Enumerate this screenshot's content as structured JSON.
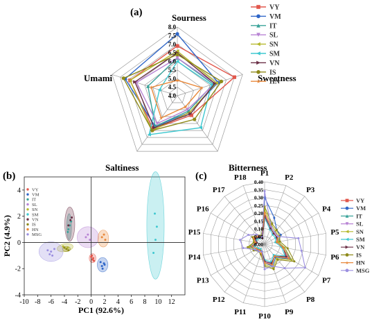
{
  "colors": {
    "VY": "#e2574c",
    "VM": "#2f66c8",
    "IT": "#3aa39a",
    "SL": "#b883d4",
    "SN": "#b4b82c",
    "SM": "#3fc8d0",
    "VN": "#6a2f46",
    "IS": "#8f8a1a",
    "HN": "#e8883a",
    "MSG": "#9b8fe0"
  },
  "chart_data": [
    {
      "type": "radar",
      "panel_label": "(a)",
      "axes": [
        "Sourness",
        "Sweetness",
        "Bitterness",
        "Saltiness",
        "Umami"
      ],
      "rlim": [
        4.0,
        8.0
      ],
      "ticks": [
        "4.0",
        "4.5",
        "5.0",
        "5.5",
        "6.0",
        "6.5",
        "7.0",
        "7.5",
        "8.0"
      ],
      "legend": "top-right",
      "series": [
        {
          "name": "VY",
          "values": [
            6.9,
            7.5,
            5.4,
            6.4,
            6.9
          ]
        },
        {
          "name": "VM",
          "values": [
            7.6,
            6.5,
            5.2,
            6.2,
            7.2
          ]
        },
        {
          "name": "IT",
          "values": [
            6.2,
            6.2,
            5.1,
            6.2,
            5.8
          ]
        },
        {
          "name": "SL",
          "values": [
            6.2,
            6.3,
            5.0,
            6.0,
            6.5
          ]
        },
        {
          "name": "SN",
          "values": [
            6.6,
            6.4,
            5.2,
            6.5,
            6.9
          ]
        },
        {
          "name": "SM",
          "values": [
            6.0,
            6.1,
            6.3,
            6.8,
            5.1
          ]
        },
        {
          "name": "VN",
          "values": [
            6.5,
            6.3,
            5.3,
            6.3,
            6.6
          ]
        },
        {
          "name": "IS",
          "values": [
            6.4,
            6.7,
            5.7,
            6.5,
            7.3
          ]
        },
        {
          "name": "HN",
          "values": [
            4.9,
            5.5,
            4.8,
            5.6,
            5.6
          ]
        }
      ]
    },
    {
      "type": "scatter",
      "panel_label": "(b)",
      "xlabel": "PC1 (92.6%)",
      "ylabel": "PC2 (4.9%)",
      "xlim": [
        -10,
        14
      ],
      "ylim": [
        -4,
        5
      ],
      "xticks": [
        "-10",
        "-8",
        "-6",
        "-4",
        "-2",
        "0",
        "2",
        "4",
        "6",
        "8",
        "10",
        "12"
      ],
      "yticks": [
        "-4",
        "-2",
        "0",
        "2",
        "4"
      ],
      "legend": "top-left",
      "series": [
        {
          "name": "VY",
          "x": [
            0.0,
            0.2,
            0.3,
            0.1,
            0.4
          ],
          "y": [
            -1.1,
            -1.3,
            -1.2,
            -1.0,
            -1.4
          ],
          "ellipse": {
            "cx": 0.2,
            "cy": -1.2,
            "rx": 0.5,
            "ry": 0.35,
            "angle": 0
          }
        },
        {
          "name": "VM",
          "x": [
            1.4,
            1.6,
            1.9,
            1.7,
            2.0
          ],
          "y": [
            -1.5,
            -1.8,
            -1.6,
            -2.0,
            -1.7
          ],
          "ellipse": {
            "cx": 1.7,
            "cy": -1.7,
            "rx": 0.8,
            "ry": 0.55,
            "angle": 0
          }
        },
        {
          "name": "IT",
          "x": [
            -3.4,
            -3.2,
            -3.0,
            -3.5
          ],
          "y": [
            1.0,
            1.3,
            1.6,
            0.8
          ],
          "ellipse": {
            "cx": -3.3,
            "cy": 1.2,
            "rx": 0.35,
            "ry": 1.0,
            "angle": 0
          }
        },
        {
          "name": "SL",
          "x": [
            -0.8,
            -0.5,
            -0.2
          ],
          "y": [
            0.4,
            0.6,
            0.2
          ],
          "ellipse": {
            "cx": -0.5,
            "cy": 0.4,
            "rx": 1.6,
            "ry": 0.8,
            "angle": 0
          }
        },
        {
          "name": "SN",
          "x": [
            -4.2,
            -4.0,
            -3.7,
            -3.5
          ],
          "y": [
            -0.3,
            -0.4,
            -0.5,
            -0.4
          ],
          "ellipse": {
            "cx": -3.9,
            "cy": -0.4,
            "rx": 1.2,
            "ry": 0.3,
            "angle": -10
          }
        },
        {
          "name": "SM",
          "x": [
            9.3,
            9.6,
            9.8,
            9.5
          ],
          "y": [
            -0.8,
            0.2,
            1.2,
            2.2
          ],
          "ellipse": {
            "cx": 9.6,
            "cy": 1.3,
            "rx": 1.3,
            "ry": 4.1,
            "angle": 0
          }
        },
        {
          "name": "VN",
          "x": [
            -3.4,
            -3.1,
            -2.9
          ],
          "y": [
            1.3,
            1.7,
            1.9
          ],
          "ellipse": {
            "cx": -3.2,
            "cy": 1.4,
            "rx": 0.75,
            "ry": 1.3,
            "angle": 0
          }
        },
        {
          "name": "IS",
          "x": [
            -4.0,
            -3.7,
            -3.4
          ],
          "y": [
            -0.4,
            -0.5,
            -0.6
          ],
          "ellipse": {
            "cx": -3.7,
            "cy": -0.5,
            "rx": 0.6,
            "ry": 0.2,
            "angle": 0
          }
        },
        {
          "name": "HN",
          "x": [
            1.6,
            1.9,
            2.1
          ],
          "y": [
            0.4,
            0.6,
            0.2
          ],
          "ellipse": {
            "cx": 1.8,
            "cy": 0.3,
            "rx": 0.8,
            "ry": 0.65,
            "angle": 0
          }
        },
        {
          "name": "MSG",
          "x": [
            -6.5,
            -6.0,
            -5.5,
            -5.8,
            -6.2
          ],
          "y": [
            -0.6,
            -0.7,
            -0.5,
            -1.0,
            -0.9
          ],
          "ellipse": {
            "cx": -6.0,
            "cy": -0.7,
            "rx": 1.8,
            "ry": 0.75,
            "angle": 0
          }
        }
      ]
    },
    {
      "type": "radar",
      "panel_label": "(c)",
      "axes": [
        "P1",
        "P2",
        "P3",
        "P4",
        "P5",
        "P6",
        "P7",
        "P8",
        "P9",
        "P10",
        "P11",
        "P12",
        "P13",
        "P14",
        "P15",
        "P16",
        "P17",
        "P18"
      ],
      "rlim": [
        0,
        0.4
      ],
      "ticks": [
        "0.00",
        "0.05",
        "0.10",
        "0.15",
        "0.20",
        "0.25",
        "0.30",
        "0.35",
        "0.40"
      ],
      "legend": "right",
      "series": [
        {
          "name": "VY",
          "values": [
            0.2,
            0.12,
            0.1,
            0.1,
            0.08,
            0.12,
            0.18,
            0.1,
            0.14,
            0.12,
            0.06,
            0.05,
            0.06,
            0.08,
            0.06,
            0.08,
            0.07,
            0.05
          ]
        },
        {
          "name": "VM",
          "values": [
            0.3,
            0.18,
            0.12,
            0.12,
            0.09,
            0.13,
            0.19,
            0.11,
            0.15,
            0.12,
            0.06,
            0.05,
            0.07,
            0.09,
            0.06,
            0.07,
            0.06,
            0.04
          ]
        },
        {
          "name": "IT",
          "values": [
            0.18,
            0.11,
            0.09,
            0.09,
            0.08,
            0.12,
            0.16,
            0.1,
            0.13,
            0.11,
            0.05,
            0.04,
            0.06,
            0.08,
            0.05,
            0.07,
            0.06,
            0.04
          ]
        },
        {
          "name": "SL",
          "values": [
            0.19,
            0.12,
            0.1,
            0.09,
            0.08,
            0.12,
            0.17,
            0.1,
            0.14,
            0.11,
            0.05,
            0.05,
            0.06,
            0.08,
            0.06,
            0.07,
            0.06,
            0.05
          ]
        },
        {
          "name": "SN",
          "values": [
            0.22,
            0.13,
            0.11,
            0.1,
            0.09,
            0.13,
            0.2,
            0.12,
            0.16,
            0.13,
            0.07,
            0.06,
            0.07,
            0.1,
            0.07,
            0.08,
            0.07,
            0.05
          ]
        },
        {
          "name": "SM",
          "values": [
            0.17,
            0.1,
            0.08,
            0.08,
            0.07,
            0.11,
            0.15,
            0.09,
            0.12,
            0.1,
            0.05,
            0.04,
            0.05,
            0.07,
            0.05,
            0.06,
            0.05,
            0.04
          ]
        },
        {
          "name": "VN",
          "values": [
            0.18,
            0.11,
            0.09,
            0.09,
            0.08,
            0.12,
            0.16,
            0.1,
            0.13,
            0.11,
            0.05,
            0.05,
            0.06,
            0.08,
            0.05,
            0.07,
            0.06,
            0.04
          ]
        },
        {
          "name": "IS",
          "values": [
            0.24,
            0.14,
            0.12,
            0.11,
            0.1,
            0.15,
            0.22,
            0.13,
            0.17,
            0.14,
            0.07,
            0.06,
            0.08,
            0.11,
            0.07,
            0.09,
            0.08,
            0.06
          ]
        },
        {
          "name": "HN",
          "values": [
            0.2,
            0.12,
            0.1,
            0.1,
            0.08,
            0.12,
            0.18,
            0.1,
            0.14,
            0.12,
            0.06,
            0.05,
            0.06,
            0.08,
            0.06,
            0.08,
            0.07,
            0.05
          ]
        },
        {
          "name": "MSG",
          "values": [
            0.34,
            0.12,
            0.1,
            0.1,
            0.22,
            0.24,
            0.3,
            0.2,
            0.15,
            0.16,
            0.05,
            0.06,
            0.07,
            0.14,
            0.16,
            0.12,
            0.08,
            0.05
          ]
        }
      ]
    }
  ]
}
